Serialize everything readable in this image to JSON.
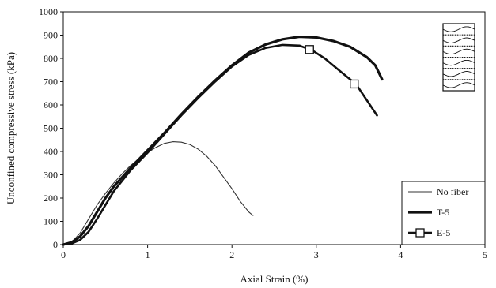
{
  "chart_data": {
    "type": "line",
    "xlabel": "Axial Strain (%)",
    "ylabel": "Unconfined compressive stress (kPa)",
    "xlim": [
      0,
      5
    ],
    "ylim": [
      0,
      1000
    ],
    "x_ticks": [
      "0",
      "1",
      "2",
      "3",
      "4",
      "5"
    ],
    "y_ticks": [
      "0",
      "100",
      "200",
      "300",
      "400",
      "500",
      "600",
      "700",
      "800",
      "900",
      "1000"
    ],
    "grid": false,
    "legend_position": "bottom-right",
    "series": [
      {
        "name": "No fiber",
        "style": "thin",
        "color": "#333333",
        "x": [
          0,
          0.1,
          0.2,
          0.3,
          0.4,
          0.5,
          0.6,
          0.7,
          0.8,
          0.9,
          1.0,
          1.1,
          1.2,
          1.3,
          1.4,
          1.5,
          1.6,
          1.7,
          1.8,
          1.9,
          2.0,
          2.1,
          2.2,
          2.25
        ],
        "y": [
          0,
          10,
          50,
          110,
          170,
          220,
          265,
          305,
          340,
          370,
          395,
          418,
          435,
          442,
          440,
          430,
          410,
          380,
          340,
          290,
          240,
          185,
          140,
          125
        ]
      },
      {
        "name": "T-5",
        "style": "thick",
        "color": "#111111",
        "x": [
          0,
          0.1,
          0.2,
          0.3,
          0.4,
          0.5,
          0.6,
          0.8,
          1.0,
          1.2,
          1.4,
          1.6,
          1.8,
          2.0,
          2.2,
          2.4,
          2.6,
          2.8,
          3.0,
          3.2,
          3.4,
          3.6,
          3.7,
          3.78
        ],
        "y": [
          0,
          10,
          35,
          80,
          140,
          200,
          250,
          330,
          405,
          480,
          560,
          635,
          705,
          770,
          825,
          860,
          882,
          893,
          890,
          875,
          850,
          805,
          770,
          710
        ]
      },
      {
        "name": "E-5",
        "style": "marker",
        "color": "#111111",
        "x": [
          0,
          0.1,
          0.2,
          0.3,
          0.4,
          0.5,
          0.6,
          0.8,
          1.0,
          1.2,
          1.4,
          1.6,
          1.8,
          2.0,
          2.2,
          2.4,
          2.6,
          2.8,
          2.95,
          3.1,
          3.3,
          3.47,
          3.6,
          3.72
        ],
        "y": [
          0,
          5,
          20,
          55,
          110,
          170,
          230,
          320,
          395,
          475,
          555,
          630,
          700,
          765,
          815,
          845,
          858,
          855,
          835,
          800,
          740,
          690,
          620,
          555
        ],
        "markers_x": [
          2.92,
          3.45
        ],
        "markers_y": [
          838,
          690
        ]
      }
    ]
  }
}
